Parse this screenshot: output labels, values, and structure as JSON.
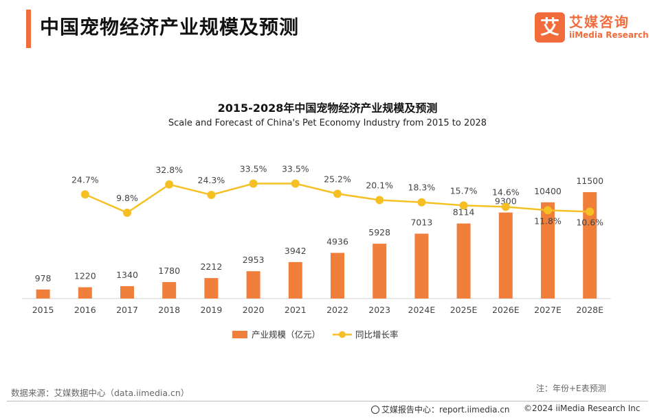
{
  "header": {
    "title": "中国宠物经济产业规模及预测"
  },
  "logo": {
    "cn": "艾媒咨询",
    "en": "iiMedia Research",
    "mark": "艾"
  },
  "source": "数据来源：艾媒数据中心（data.iimedia.cn）",
  "note": "注：年份+E表预测",
  "footer": {
    "left": "艾媒报告中心：report.iimedia.cn",
    "right": "©2024  iiMedia Research  Inc"
  },
  "colors": {
    "accent": "#f26b3a",
    "bar": "#f07f3c",
    "line": "#f6c025"
  },
  "chart_data": {
    "type": "bar",
    "title": "2015-2028年中国宠物经济产业规模及预测",
    "subtitle": "Scale and Forecast of China's Pet Economy Industry from 2015 to 2028",
    "categories": [
      "2015",
      "2016",
      "2017",
      "2018",
      "2019",
      "2020",
      "2021",
      "2022",
      "2023",
      "2024E",
      "2025E",
      "2026E",
      "2027E",
      "2028E"
    ],
    "series": [
      {
        "name": "产业规模（亿元）",
        "type": "bar",
        "values": [
          978,
          1220,
          1340,
          1780,
          2212,
          2953,
          3942,
          4936,
          5928,
          7013,
          8114,
          9300,
          10400,
          11500
        ]
      },
      {
        "name": "同比增长率",
        "type": "line",
        "values": [
          null,
          24.7,
          9.8,
          32.8,
          24.3,
          33.5,
          33.5,
          25.2,
          20.1,
          18.3,
          15.7,
          14.6,
          11.8,
          10.6
        ],
        "labels": [
          "",
          "24.7%",
          "9.8%",
          "32.8%",
          "24.3%",
          "33.5%",
          "33.5%",
          "25.2%",
          "20.1%",
          "18.3%",
          "15.7%",
          "14.6%",
          "11.8%",
          "10.6%"
        ]
      }
    ],
    "legend": "bottom-center",
    "grid": false
  }
}
